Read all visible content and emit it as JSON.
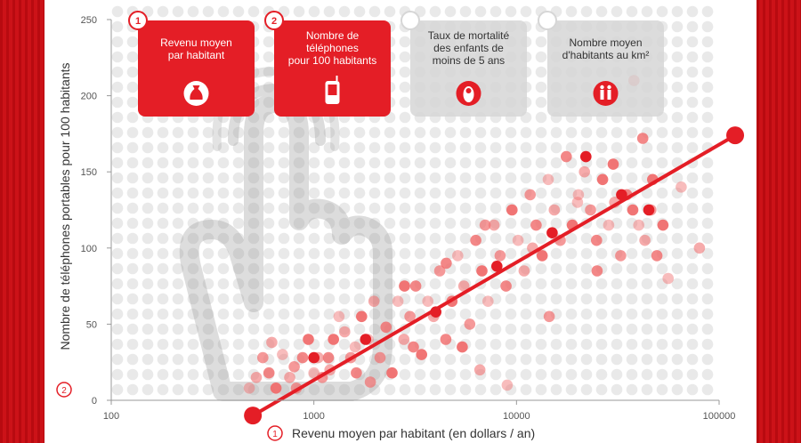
{
  "chart_data": {
    "type": "scatter",
    "xlabel": "Revenu moyen par habitant (en dollars / an)",
    "ylabel": "Nombre de téléphones portables pour 100 habitants",
    "xscale": "log",
    "xlim": [
      100,
      100000
    ],
    "ylim": [
      0,
      250
    ],
    "x_ticks": [
      "100",
      "1000",
      "10000",
      "100000"
    ],
    "y_ticks": [
      "0",
      "50",
      "100",
      "150",
      "200",
      "250"
    ],
    "x_badge": "1",
    "y_badge": "2",
    "grid": true,
    "colors": {
      "point": "#f06b6b",
      "point_strong": "#e41e26",
      "trend": "#e41e26",
      "background_dot": "#e9e9e9"
    },
    "points": [
      [
        480,
        8
      ],
      [
        520,
        15
      ],
      [
        560,
        28
      ],
      [
        600,
        18
      ],
      [
        650,
        8
      ],
      [
        700,
        30
      ],
      [
        760,
        15
      ],
      [
        820,
        8
      ],
      [
        880,
        28
      ],
      [
        940,
        40
      ],
      [
        1000,
        18
      ],
      [
        1050,
        28
      ],
      [
        1100,
        15
      ],
      [
        1180,
        28
      ],
      [
        1250,
        40
      ],
      [
        1330,
        55
      ],
      [
        1420,
        45
      ],
      [
        1520,
        28
      ],
      [
        1620,
        18
      ],
      [
        1720,
        55
      ],
      [
        1850,
        40
      ],
      [
        1980,
        65
      ],
      [
        2120,
        28
      ],
      [
        2270,
        48
      ],
      [
        2430,
        18
      ],
      [
        2600,
        65
      ],
      [
        2780,
        40
      ],
      [
        2980,
        55
      ],
      [
        3180,
        75
      ],
      [
        3400,
        30
      ],
      [
        3650,
        65
      ],
      [
        3900,
        55
      ],
      [
        4180,
        85
      ],
      [
        4480,
        40
      ],
      [
        4800,
        65
      ],
      [
        5130,
        95
      ],
      [
        5500,
        75
      ],
      [
        5880,
        50
      ],
      [
        6300,
        105
      ],
      [
        6750,
        85
      ],
      [
        7230,
        65
      ],
      [
        7750,
        115
      ],
      [
        8300,
        95
      ],
      [
        8880,
        75
      ],
      [
        9500,
        125
      ],
      [
        10180,
        105
      ],
      [
        10900,
        85
      ],
      [
        11680,
        135
      ],
      [
        12500,
        115
      ],
      [
        13390,
        95
      ],
      [
        14340,
        145
      ],
      [
        15360,
        125
      ],
      [
        16450,
        105
      ],
      [
        17620,
        160
      ],
      [
        18870,
        115
      ],
      [
        20210,
        135
      ],
      [
        21650,
        150
      ],
      [
        23190,
        125
      ],
      [
        24830,
        105
      ],
      [
        26600,
        145
      ],
      [
        28490,
        115
      ],
      [
        30510,
        130
      ],
      [
        32680,
        95
      ],
      [
        35000,
        135
      ],
      [
        37480,
        125
      ],
      [
        40140,
        115
      ],
      [
        43000,
        105
      ],
      [
        46050,
        125
      ],
      [
        49330,
        95
      ],
      [
        52820,
        115
      ],
      [
        65000,
        140
      ],
      [
        80000,
        100
      ],
      [
        38000,
        210
      ],
      [
        42000,
        172
      ],
      [
        30000,
        155
      ],
      [
        20000,
        130
      ],
      [
        12000,
        100
      ],
      [
        7000,
        115
      ],
      [
        4500,
        90
      ],
      [
        2800,
        75
      ],
      [
        1600,
        35
      ],
      [
        1200,
        20
      ],
      [
        800,
        22
      ],
      [
        3100,
        35
      ],
      [
        5400,
        35
      ],
      [
        9000,
        10
      ],
      [
        6600,
        20
      ],
      [
        14500,
        55
      ],
      [
        25000,
        85
      ],
      [
        47000,
        145
      ],
      [
        56000,
        80
      ],
      [
        620,
        38
      ],
      [
        1900,
        12
      ]
    ],
    "strong_points": [
      [
        1000,
        28
      ],
      [
        1800,
        40
      ],
      [
        4000,
        58
      ],
      [
        8000,
        88
      ],
      [
        15000,
        110
      ],
      [
        33000,
        135
      ],
      [
        22000,
        160
      ],
      [
        45000,
        125
      ]
    ],
    "trend": {
      "x": [
        500,
        120000
      ],
      "y": [
        -10,
        174
      ]
    }
  },
  "tiles": [
    {
      "badge": "1",
      "lines": [
        "Revenu moyen",
        "par habitant"
      ],
      "icon": "money-bag-icon",
      "active": true
    },
    {
      "badge": "2",
      "lines": [
        "Nombre de",
        "téléphones",
        "pour 100 habitants"
      ],
      "icon": "phone-icon",
      "active": true
    },
    {
      "badge": "",
      "lines": [
        "Taux de mortalité",
        "des enfants de",
        "moins de 5 ans"
      ],
      "icon": "baby-icon",
      "active": false
    },
    {
      "badge": "",
      "lines": [
        "Nombre moyen",
        "d'habitants au km²"
      ],
      "icon": "people-icon",
      "active": false
    }
  ]
}
